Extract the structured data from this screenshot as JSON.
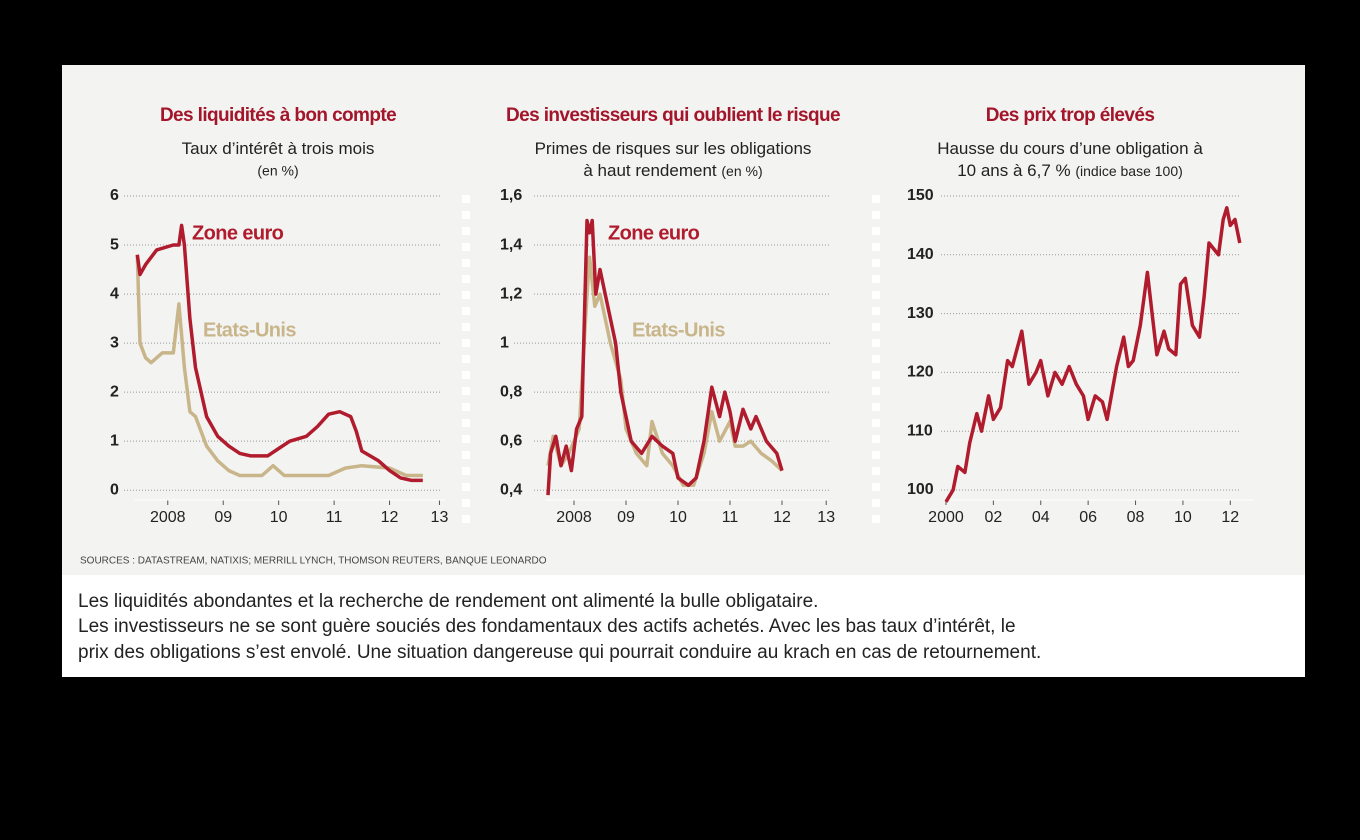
{
  "chart_data": [
    {
      "type": "line",
      "title": "Des liquidités à bon compte",
      "subtitle": [
        "Taux d’intérêt à trois mois"
      ],
      "unit": "(en %)",
      "xlim": [
        2007.9,
        2013.5
      ],
      "ylim": [
        -0.2,
        6
      ],
      "xticks": [
        {
          "value": 2008.5,
          "label": "2008"
        },
        {
          "value": 2009.5,
          "label": "09"
        },
        {
          "value": 2010.5,
          "label": "10"
        },
        {
          "value": 2011.5,
          "label": "11"
        },
        {
          "value": 2012.5,
          "label": "12"
        },
        {
          "value": 2013.4,
          "label": "13"
        }
      ],
      "yticks": [
        0,
        1,
        2,
        3,
        4,
        5,
        6
      ],
      "grid": true,
      "series": [
        {
          "name": "Zone euro",
          "color": "#b01c2e",
          "x": [
            2007.95,
            2008.0,
            2008.1,
            2008.3,
            2008.6,
            2008.7,
            2008.75,
            2008.8,
            2008.9,
            2009.0,
            2009.2,
            2009.4,
            2009.6,
            2009.8,
            2010.0,
            2010.3,
            2010.5,
            2010.7,
            2011.0,
            2011.2,
            2011.4,
            2011.6,
            2011.8,
            2011.9,
            2012.0,
            2012.3,
            2012.5,
            2012.7,
            2012.9,
            2013.1
          ],
          "values": [
            4.8,
            4.4,
            4.6,
            4.9,
            5.0,
            5.0,
            5.4,
            5.0,
            3.5,
            2.5,
            1.5,
            1.1,
            0.9,
            0.75,
            0.7,
            0.7,
            0.85,
            1.0,
            1.1,
            1.3,
            1.55,
            1.6,
            1.5,
            1.2,
            0.8,
            0.6,
            0.4,
            0.25,
            0.2,
            0.2
          ]
        },
        {
          "name": "Etats-Unis",
          "color": "#c9b58a",
          "x": [
            2007.95,
            2008.0,
            2008.1,
            2008.2,
            2008.4,
            2008.6,
            2008.7,
            2008.8,
            2008.9,
            2009.0,
            2009.2,
            2009.4,
            2009.6,
            2009.8,
            2010.2,
            2010.4,
            2010.6,
            2011.0,
            2011.4,
            2011.7,
            2012.0,
            2012.5,
            2012.8,
            2013.1
          ],
          "values": [
            4.8,
            3.0,
            2.7,
            2.6,
            2.8,
            2.8,
            3.8,
            2.5,
            1.6,
            1.5,
            0.9,
            0.6,
            0.4,
            0.3,
            0.3,
            0.5,
            0.3,
            0.3,
            0.3,
            0.45,
            0.5,
            0.45,
            0.3,
            0.3
          ]
        }
      ]
    },
    {
      "type": "line",
      "title": "Des investisseurs qui oublient le risque",
      "subtitle": [
        "Primes de risques sur les obligations",
        "à haut rendement"
      ],
      "unit": "(en %)",
      "xlim": [
        2007.95,
        2013.4
      ],
      "ylim": [
        0.36,
        1.6
      ],
      "xticks": [
        {
          "value": 2008.5,
          "label": "2008"
        },
        {
          "value": 2009.5,
          "label": "09"
        },
        {
          "value": 2010.5,
          "label": "10"
        },
        {
          "value": 2011.5,
          "label": "11"
        },
        {
          "value": 2012.5,
          "label": "12"
        },
        {
          "value": 2013.35,
          "label": "13"
        }
      ],
      "yticks": [
        {
          "value": 0.4,
          "label": "0,4"
        },
        {
          "value": 0.6,
          "label": "0,6"
        },
        {
          "value": 0.8,
          "label": "0,8"
        },
        1,
        {
          "value": 1.2,
          "label": "1,2"
        },
        {
          "value": 1.4,
          "label": "1,4"
        },
        {
          "value": 1.6,
          "label": "1,6"
        }
      ],
      "grid": true,
      "series": [
        {
          "name": "Zone euro",
          "color": "#b01c2e",
          "x": [
            2008.0,
            2008.05,
            2008.15,
            2008.25,
            2008.35,
            2008.45,
            2008.55,
            2008.65,
            2008.75,
            2008.8,
            2008.85,
            2008.92,
            2009.0,
            2009.1,
            2009.2,
            2009.3,
            2009.4,
            2009.5,
            2009.6,
            2009.8,
            2010.0,
            2010.2,
            2010.4,
            2010.5,
            2010.7,
            2010.85,
            2011.0,
            2011.15,
            2011.3,
            2011.4,
            2011.5,
            2011.6,
            2011.75,
            2011.9,
            2012.0,
            2012.2,
            2012.4,
            2012.5
          ],
          "values": [
            0.38,
            0.55,
            0.62,
            0.5,
            0.58,
            0.48,
            0.65,
            0.7,
            1.5,
            1.45,
            1.5,
            1.2,
            1.3,
            1.2,
            1.1,
            1.0,
            0.8,
            0.7,
            0.6,
            0.55,
            0.62,
            0.58,
            0.55,
            0.45,
            0.42,
            0.45,
            0.6,
            0.82,
            0.7,
            0.8,
            0.72,
            0.6,
            0.73,
            0.65,
            0.7,
            0.6,
            0.55,
            0.48
          ]
        },
        {
          "name": "Etats-Unis",
          "color": "#c9b58a",
          "x": [
            2008.0,
            2008.1,
            2008.25,
            2008.4,
            2008.6,
            2008.75,
            2008.8,
            2008.9,
            2009.0,
            2009.2,
            2009.4,
            2009.5,
            2009.7,
            2009.9,
            2010.0,
            2010.2,
            2010.4,
            2010.6,
            2010.8,
            2011.0,
            2011.15,
            2011.3,
            2011.5,
            2011.6,
            2011.75,
            2011.9,
            2012.1,
            2012.3,
            2012.5
          ],
          "values": [
            0.5,
            0.62,
            0.5,
            0.55,
            0.65,
            1.2,
            1.35,
            1.15,
            1.2,
            1.0,
            0.85,
            0.65,
            0.55,
            0.5,
            0.68,
            0.55,
            0.5,
            0.42,
            0.42,
            0.55,
            0.72,
            0.6,
            0.68,
            0.58,
            0.58,
            0.6,
            0.55,
            0.52,
            0.48
          ]
        }
      ]
    },
    {
      "type": "line",
      "title": "Des prix trop élevés",
      "subtitle": [
        "Hausse du cours d’une obligation à",
        "10 ans à 6,7 %"
      ],
      "unit": "(indice base 100)",
      "xlim": [
        1999.9,
        2013
      ],
      "ylim": [
        98.3,
        150
      ],
      "xticks": [
        2000,
        {
          "value": 2002,
          "label": "02"
        },
        {
          "value": 2004,
          "label": "04"
        },
        {
          "value": 2006,
          "label": "06"
        },
        {
          "value": 2008,
          "label": "08"
        },
        {
          "value": 2010,
          "label": "10"
        },
        {
          "value": 2012,
          "label": "12"
        }
      ],
      "yticks": [
        100,
        110,
        120,
        130,
        140,
        150
      ],
      "grid": true,
      "color": "#b01c2e",
      "x": [
        2000,
        2000.3,
        2000.5,
        2000.8,
        2001,
        2001.3,
        2001.5,
        2001.8,
        2002,
        2002.3,
        2002.6,
        2002.8,
        2003.2,
        2003.5,
        2003.8,
        2004,
        2004.3,
        2004.6,
        2004.9,
        2005.2,
        2005.5,
        2005.8,
        2006,
        2006.3,
        2006.6,
        2006.8,
        2007.2,
        2007.5,
        2007.7,
        2007.9,
        2008.2,
        2008.5,
        2008.7,
        2008.9,
        2009.2,
        2009.4,
        2009.7,
        2009.9,
        2010.1,
        2010.4,
        2010.7,
        2010.9,
        2011.1,
        2011.3,
        2011.5,
        2011.7,
        2011.85,
        2012.0,
        2012.2,
        2012.4
      ],
      "values": [
        98,
        100,
        104,
        103,
        108,
        113,
        110,
        116,
        112,
        114,
        122,
        121,
        127,
        118,
        120,
        122,
        116,
        120,
        118,
        121,
        118,
        116,
        112,
        116,
        115,
        112,
        121,
        126,
        121,
        122,
        128,
        137,
        130,
        123,
        127,
        124,
        123,
        135,
        136,
        128,
        126,
        133,
        142,
        141,
        140,
        146,
        148,
        145,
        146,
        142
      ]
    }
  ],
  "sources": "SOURCES : DATASTREAM, NATIXIS; MERRILL LYNCH, THOMSON REUTERS, BANQUE LEONARDO",
  "caption": [
    "Les liquidités abondantes et la recherche de rendement ont alimenté la bulle obligataire.",
    "Les investisseurs ne se sont guère souciés des fondamentaux des actifs achetés. Avec les bas taux d’intérêt, le",
    "prix des obligations s’est envolé. Une situation dangereuse qui pourrait conduire au krach en cas de retournement."
  ]
}
